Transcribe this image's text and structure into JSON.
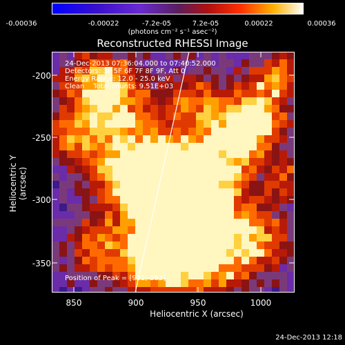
{
  "colorbar": {
    "ticks": [
      "-0.00036",
      "-0.00022",
      "-7.2e-05",
      "7.2e-05",
      "0.00022",
      "0.00036"
    ],
    "unit": "(photons cm⁻² s⁻¹ asec⁻²)"
  },
  "title": "Reconstructed RHESSI Image",
  "info": {
    "time": "24-Dec-2013 07:36:04.000 to 07:40:52.000",
    "detectors": "Detectors: 3F 5F 6F 7F 8F 9F, Att 0",
    "energy": "Energy Range: 12.0 - 25.0 keV",
    "clean": "Clean    Total counts: 9.51E+03"
  },
  "peak": "Position of Peak = [932,-282]",
  "axes": {
    "xlabel": "Heliocentric X (arcsec)",
    "ylabel": "Heliocentric Y (arcsec)",
    "xticks": [
      "850",
      "900",
      "950",
      "1000"
    ],
    "yticks": [
      "-200",
      "-250",
      "-300",
      "-350"
    ]
  },
  "footer": "24-Dec-2013 12:18",
  "colors": {
    "background": "#000000",
    "text": "#ffffff"
  }
}
